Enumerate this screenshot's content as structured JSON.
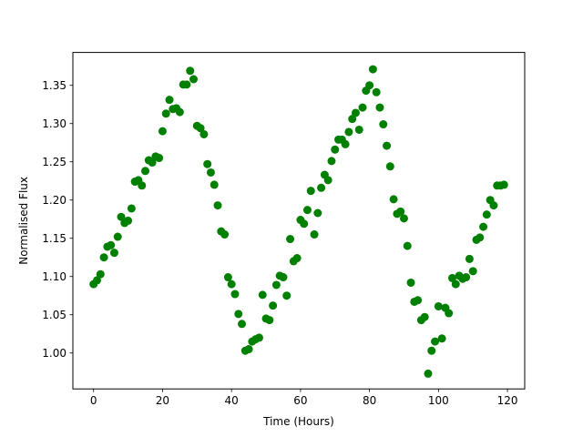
{
  "chart_data": {
    "type": "scatter",
    "title": "",
    "xlabel": "Time (Hours)",
    "ylabel": "Normalised Flux",
    "xlim": [
      -6,
      125
    ],
    "ylim": [
      0.953,
      1.393
    ],
    "xticks": [
      0,
      20,
      40,
      60,
      80,
      100,
      120
    ],
    "yticks": [
      1.0,
      1.05,
      1.1,
      1.15,
      1.2,
      1.25,
      1.3,
      1.35
    ],
    "ytick_labels": [
      "1.00",
      "1.05",
      "1.10",
      "1.15",
      "1.20",
      "1.25",
      "1.30",
      "1.35"
    ],
    "grid": false,
    "legend": false,
    "marker_color": "#008000",
    "x": [
      0,
      1,
      2,
      3,
      4,
      5,
      6,
      7,
      8,
      9,
      10,
      11,
      12,
      13,
      14,
      15,
      16,
      17,
      18,
      19,
      20,
      21,
      22,
      23,
      24,
      25,
      26,
      27,
      28,
      29,
      30,
      31,
      32,
      33,
      34,
      35,
      36,
      37,
      38,
      39,
      40,
      41,
      42,
      43,
      44,
      45,
      46,
      47,
      48,
      49,
      50,
      51,
      52,
      53,
      54,
      55,
      56,
      57,
      58,
      59,
      60,
      61,
      62,
      63,
      64,
      65,
      66,
      67,
      68,
      69,
      70,
      71,
      72,
      73,
      74,
      75,
      76,
      77,
      78,
      79,
      80,
      81,
      82,
      83,
      84,
      85,
      86,
      87,
      88,
      89,
      90,
      91,
      92,
      93,
      94,
      95,
      96,
      97,
      98,
      99,
      100,
      101,
      102,
      103,
      104,
      105,
      106,
      107,
      108,
      109,
      110,
      111,
      112,
      113,
      114,
      115,
      116,
      117,
      118,
      119
    ],
    "y": [
      1.09,
      1.095,
      1.103,
      1.125,
      1.139,
      1.141,
      1.131,
      1.152,
      1.178,
      1.17,
      1.173,
      1.189,
      1.224,
      1.226,
      1.219,
      1.238,
      1.252,
      1.249,
      1.257,
      1.255,
      1.29,
      1.313,
      1.331,
      1.319,
      1.32,
      1.315,
      1.351,
      1.351,
      1.369,
      1.358,
      1.297,
      1.294,
      1.286,
      1.247,
      1.236,
      1.22,
      1.193,
      1.159,
      1.155,
      1.099,
      1.09,
      1.077,
      1.051,
      1.038,
      1.003,
      1.005,
      1.015,
      1.018,
      1.02,
      1.076,
      1.045,
      1.043,
      1.062,
      1.089,
      1.101,
      1.099,
      1.075,
      1.149,
      1.12,
      1.124,
      1.174,
      1.169,
      1.187,
      1.212,
      1.155,
      1.183,
      1.216,
      1.233,
      1.226,
      1.251,
      1.266,
      1.279,
      1.279,
      1.273,
      1.289,
      1.306,
      1.314,
      1.292,
      1.321,
      1.343,
      1.35,
      1.371,
      1.341,
      1.321,
      1.299,
      1.271,
      1.244,
      1.201,
      1.182,
      1.185,
      1.176,
      1.14,
      1.092,
      1.067,
      1.069,
      1.043,
      1.047,
      0.973,
      1.003,
      1.015,
      1.061,
      1.019,
      1.059,
      1.052,
      1.098,
      1.09,
      1.101,
      1.097,
      1.099,
      1.123,
      1.107,
      1.148,
      1.151,
      1.165,
      1.181,
      1.2,
      1.193,
      1.219,
      1.219,
      1.22
    ]
  }
}
